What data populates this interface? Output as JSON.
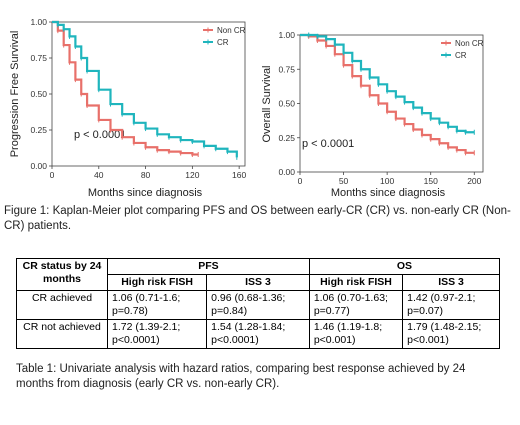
{
  "chart_data": [
    {
      "type": "line",
      "title": "",
      "xlabel": "Months since diagnosis",
      "ylabel": "Progression Free Survival",
      "xlim": [
        0,
        165
      ],
      "ylim": [
        0,
        1
      ],
      "xticks": [
        "0",
        "40",
        "80",
        "120",
        "160"
      ],
      "yticks": [
        "0.00",
        "0.25",
        "0.50",
        "0.75",
        "1.00"
      ],
      "annotation": "p < 0.0001",
      "legend_position": "top-right",
      "grid": false,
      "series": [
        {
          "name": "Non CR",
          "color": "#E8706A",
          "x": [
            0,
            5,
            10,
            15,
            20,
            25,
            30,
            40,
            50,
            60,
            70,
            80,
            90,
            100,
            110,
            120,
            125
          ],
          "y": [
            1.0,
            0.94,
            0.84,
            0.72,
            0.6,
            0.5,
            0.42,
            0.32,
            0.25,
            0.2,
            0.16,
            0.13,
            0.11,
            0.1,
            0.09,
            0.08,
            0.08
          ]
        },
        {
          "name": "CR",
          "color": "#1FB5BD",
          "x": [
            0,
            5,
            10,
            15,
            20,
            25,
            30,
            40,
            50,
            60,
            70,
            80,
            90,
            100,
            110,
            120,
            130,
            140,
            150,
            158
          ],
          "y": [
            1.0,
            0.98,
            0.95,
            0.9,
            0.83,
            0.75,
            0.66,
            0.53,
            0.43,
            0.36,
            0.3,
            0.26,
            0.22,
            0.2,
            0.18,
            0.17,
            0.14,
            0.12,
            0.1,
            0.06
          ]
        }
      ]
    },
    {
      "type": "line",
      "title": "",
      "xlabel": "Months since diagnosis",
      "ylabel": "Overall Survival",
      "xlim": [
        0,
        210
      ],
      "ylim": [
        0,
        1
      ],
      "xticks": [
        "0",
        "50",
        "100",
        "150",
        "200"
      ],
      "yticks": [
        "0.00",
        "0.25",
        "0.50",
        "0.75",
        "1.00"
      ],
      "annotation": "p < 0.0001",
      "legend_position": "top-right",
      "grid": false,
      "series": [
        {
          "name": "Non CR",
          "color": "#E8706A",
          "x": [
            0,
            10,
            20,
            30,
            40,
            50,
            60,
            70,
            80,
            90,
            100,
            110,
            120,
            130,
            140,
            150,
            160,
            170,
            180,
            190,
            200
          ],
          "y": [
            1.0,
            0.99,
            0.96,
            0.92,
            0.86,
            0.78,
            0.7,
            0.63,
            0.56,
            0.5,
            0.44,
            0.39,
            0.35,
            0.31,
            0.27,
            0.24,
            0.21,
            0.18,
            0.16,
            0.14,
            0.14
          ]
        },
        {
          "name": "CR",
          "color": "#1FB5BD",
          "x": [
            0,
            10,
            20,
            30,
            40,
            50,
            60,
            70,
            80,
            90,
            100,
            110,
            120,
            130,
            140,
            150,
            160,
            170,
            180,
            190,
            200
          ],
          "y": [
            1.0,
            1.0,
            0.99,
            0.97,
            0.93,
            0.87,
            0.81,
            0.75,
            0.69,
            0.64,
            0.59,
            0.55,
            0.51,
            0.47,
            0.43,
            0.39,
            0.36,
            0.33,
            0.3,
            0.29,
            0.29
          ]
        }
      ]
    }
  ],
  "figure_caption": "Figure 1: Kaplan-Meier plot comparing PFS and OS between early-CR (CR) vs. non-early CR (Non-CR) patients.",
  "table": {
    "corner": "CR status by 24 months",
    "groups": [
      "PFS",
      "OS"
    ],
    "subheaders": [
      "High risk FISH",
      "ISS 3",
      "High risk FISH",
      "ISS 3"
    ],
    "rows": [
      {
        "label": "CR achieved",
        "cells": [
          "1.06 (0.71-1.6; p=0.78)",
          "0.96 (0.68-1.36; p=0.84)",
          "1.06 (0.70-1.63; p=0.77)",
          "1.42 (0.97-2.1; p=0.07)"
        ]
      },
      {
        "label": "CR not achieved",
        "cells": [
          "1.72 (1.39-2.1; p<0.0001)",
          "1.54 (1.28-1.84; p<0.0001)",
          "1.46 (1.19-1.8; p<0.001)",
          "1.79 (1.48-2.15; p<0.001)"
        ]
      }
    ]
  },
  "table_caption": "Table 1: Univariate analysis with hazard ratios, comparing best response achieved by 24 months from diagnosis (early CR vs. non-early CR)."
}
